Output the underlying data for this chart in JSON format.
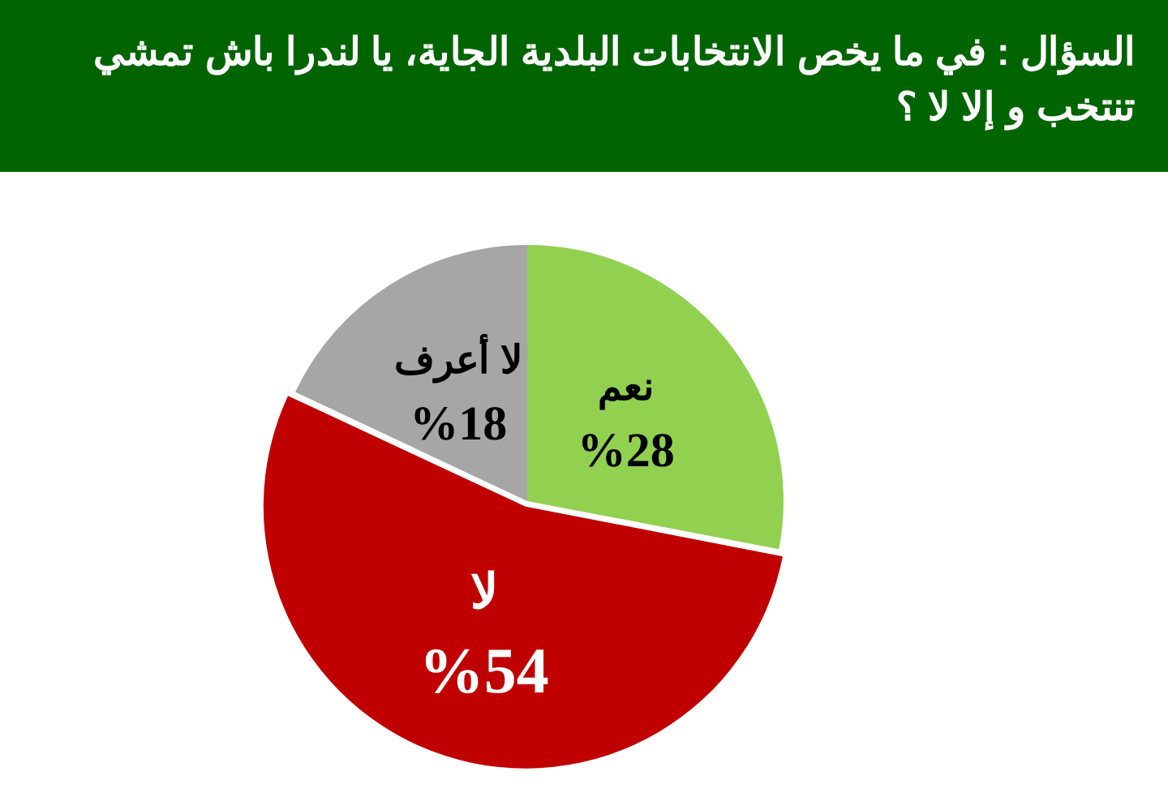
{
  "chart_data": {
    "type": "pie",
    "title": "السؤال : في ما يخص الانتخابات البلدية الجاية، يا لندرا باش تمشي تنتخب و إلا لا ؟",
    "categories": [
      "نعم",
      "لا",
      "لا أعرف"
    ],
    "values": [
      28,
      54,
      18
    ],
    "colors": [
      "#92d050",
      "#c00000",
      "#a6a6a6"
    ],
    "value_labels": [
      "%28",
      "%54",
      "%18"
    ],
    "legend": false
  }
}
